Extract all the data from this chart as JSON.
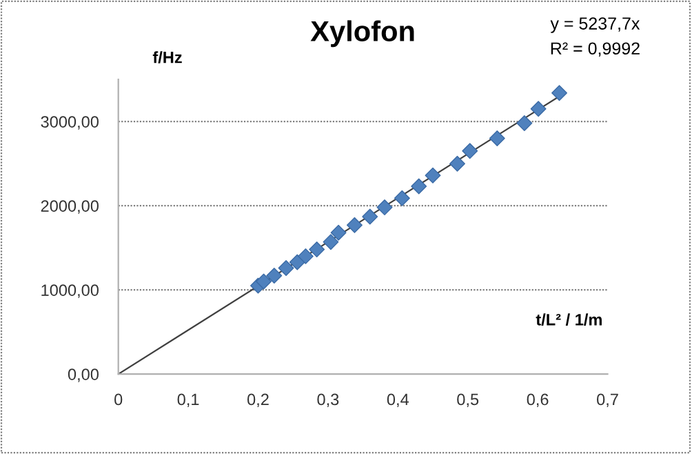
{
  "chart_data": {
    "type": "scatter",
    "title": "Xylofon",
    "xlabel": "t/L² / 1/m",
    "ylabel": "f/Hz",
    "annotations": [
      "y = 5237,7x",
      "R² = 0,9992"
    ],
    "xlim": [
      0,
      0.7
    ],
    "ylim": [
      0,
      3500
    ],
    "xticks": [
      0,
      {
        "value": 0.1,
        "label": "0,1"
      },
      {
        "value": 0.2,
        "label": "0,2"
      },
      {
        "value": 0.3,
        "label": "0,3"
      },
      {
        "value": 0.4,
        "label": "0,4"
      },
      {
        "value": 0.5,
        "label": "0,5"
      },
      {
        "value": 0.6,
        "label": "0,6"
      },
      {
        "value": 0.7,
        "label": "0,7"
      }
    ],
    "yticks": [
      {
        "value": 0,
        "label": "0,00"
      },
      {
        "value": 1000,
        "label": "1000,00"
      },
      {
        "value": 2000,
        "label": "2000,00"
      },
      {
        "value": 3000,
        "label": "3000,00"
      }
    ],
    "grid": "y",
    "legend": false,
    "series": [
      {
        "color": "#4f81bd",
        "marker": "diamond",
        "x": [
          0.2,
          0.208,
          0.223,
          0.24,
          0.256,
          0.268,
          0.284,
          0.304,
          0.315,
          0.338,
          0.36,
          0.381,
          0.406,
          0.43,
          0.45,
          0.485,
          0.503,
          0.542,
          0.581,
          0.601,
          0.631
        ],
        "values": [
          1050,
          1100,
          1170,
          1260,
          1330,
          1400,
          1480,
          1570,
          1680,
          1770,
          1870,
          1980,
          2090,
          2230,
          2360,
          2500,
          2650,
          2800,
          2980,
          3150,
          3340
        ]
      },
      {
        "type": "line",
        "color": "#404040",
        "marker": "none",
        "line_style": "solid",
        "x": [
          0,
          0.631
        ],
        "values": [
          0,
          3300
        ]
      }
    ]
  }
}
